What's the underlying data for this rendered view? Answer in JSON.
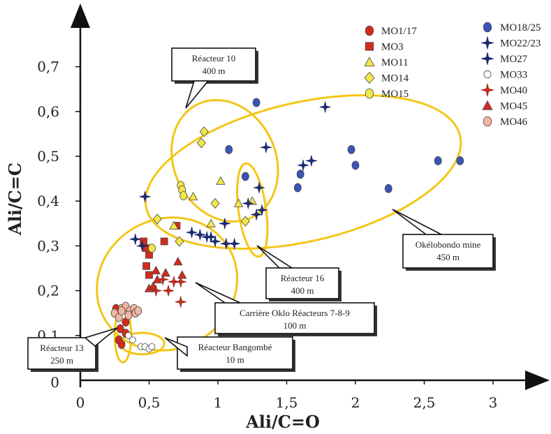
{
  "chart_data": {
    "type": "scatter",
    "xlabel": "Ali/C=O",
    "ylabel": "Ali/C=C",
    "xlim": [
      0,
      3.05
    ],
    "ylim": [
      0,
      0.75
    ],
    "x_ticks": [
      "0",
      "0,5",
      "1",
      "1,5",
      "2",
      "2,5",
      "3"
    ],
    "x_tick_values": [
      0,
      0.5,
      1,
      1.5,
      2,
      2.5,
      3
    ],
    "y_ticks": [
      "0",
      "0,1",
      "0,2",
      "0,3",
      "0,4",
      "0,5",
      "0,6",
      "0,7"
    ],
    "y_tick_values": [
      0,
      0.1,
      0.2,
      0.3,
      0.4,
      0.5,
      0.6,
      0.7
    ],
    "grid": false,
    "legend_position": "top-right",
    "series": [
      {
        "name": "MO1/17",
        "marker": "circle",
        "color": "#d42a1c",
        "points": [
          [
            0.26,
            0.16
          ],
          [
            0.33,
            0.13
          ],
          [
            0.29,
            0.115
          ],
          [
            0.33,
            0.105
          ],
          [
            0.28,
            0.09
          ],
          [
            0.3,
            0.08
          ]
        ]
      },
      {
        "name": "MO3",
        "marker": "square",
        "color": "#d42a1c",
        "points": [
          [
            0.46,
            0.31
          ],
          [
            0.48,
            0.295
          ],
          [
            0.5,
            0.28
          ],
          [
            0.48,
            0.255
          ],
          [
            0.5,
            0.235
          ],
          [
            0.61,
            0.31
          ],
          [
            0.7,
            0.345
          ]
        ]
      },
      {
        "name": "MO11",
        "marker": "triangle",
        "color": "#f2e64a",
        "points": [
          [
            0.68,
            0.345
          ],
          [
            0.82,
            0.41
          ],
          [
            1.02,
            0.445
          ],
          [
            1.15,
            0.395
          ],
          [
            1.25,
            0.4
          ],
          [
            0.95,
            0.35
          ]
        ]
      },
      {
        "name": "MO14",
        "marker": "diamond",
        "color": "#f2e64a",
        "points": [
          [
            0.9,
            0.555
          ],
          [
            0.88,
            0.53
          ],
          [
            0.56,
            0.36
          ],
          [
            0.72,
            0.31
          ],
          [
            0.98,
            0.395
          ],
          [
            1.2,
            0.355
          ]
        ]
      },
      {
        "name": "MO15",
        "marker": "circle",
        "color": "#f2e64a",
        "points": [
          [
            0.73,
            0.435
          ],
          [
            0.74,
            0.425
          ],
          [
            0.75,
            0.412
          ],
          [
            0.52,
            0.295
          ]
        ]
      },
      {
        "name": "MO18/25",
        "marker": "ellipse",
        "color": "#3a55b8",
        "points": [
          [
            1.28,
            0.62
          ],
          [
            1.08,
            0.515
          ],
          [
            1.6,
            0.46
          ],
          [
            1.97,
            0.515
          ],
          [
            2.0,
            0.48
          ],
          [
            2.6,
            0.49
          ],
          [
            2.76,
            0.49
          ],
          [
            1.58,
            0.43
          ],
          [
            2.24,
            0.428
          ],
          [
            1.2,
            0.455
          ]
        ]
      },
      {
        "name": "MO22/23",
        "marker": "star4",
        "color": "#1c2a6e",
        "points": [
          [
            1.78,
            0.61
          ],
          [
            1.35,
            0.52
          ],
          [
            1.62,
            0.48
          ],
          [
            1.68,
            0.49
          ],
          [
            1.3,
            0.43
          ],
          [
            1.28,
            0.37
          ],
          [
            1.05,
            0.35
          ],
          [
            0.95,
            0.32
          ],
          [
            1.06,
            0.305
          ],
          [
            1.12,
            0.305
          ],
          [
            0.92,
            0.32
          ],
          [
            0.47,
            0.41
          ]
        ]
      },
      {
        "name": "MO27",
        "marker": "star4",
        "color": "#1c2a6e",
        "points": [
          [
            0.4,
            0.315
          ],
          [
            0.45,
            0.3
          ],
          [
            1.22,
            0.395
          ],
          [
            1.32,
            0.38
          ],
          [
            0.87,
            0.325
          ],
          [
            0.98,
            0.31
          ],
          [
            0.81,
            0.33
          ]
        ]
      },
      {
        "name": "MO33",
        "marker": "open-circle",
        "color": "#ffffff",
        "points": [
          [
            0.35,
            0.1
          ],
          [
            0.38,
            0.09
          ],
          [
            0.44,
            0.075
          ],
          [
            0.47,
            0.075
          ],
          [
            0.5,
            0.07
          ],
          [
            0.52,
            0.075
          ]
        ]
      },
      {
        "name": "MO40",
        "marker": "star-filled",
        "color": "#d42a1c",
        "points": [
          [
            0.55,
            0.2
          ],
          [
            0.6,
            0.225
          ],
          [
            0.68,
            0.22
          ],
          [
            0.73,
            0.22
          ],
          [
            0.73,
            0.175
          ],
          [
            0.64,
            0.2
          ]
        ]
      },
      {
        "name": "MO45",
        "marker": "triangle",
        "color": "#d42a1c",
        "points": [
          [
            0.5,
            0.205
          ],
          [
            0.53,
            0.21
          ],
          [
            0.56,
            0.225
          ],
          [
            0.62,
            0.24
          ],
          [
            0.71,
            0.265
          ],
          [
            0.74,
            0.235
          ],
          [
            0.55,
            0.245
          ]
        ]
      },
      {
        "name": "MO46",
        "marker": "circle",
        "color": "#f3b5a0",
        "points": [
          [
            0.25,
            0.15
          ],
          [
            0.3,
            0.16
          ],
          [
            0.33,
            0.165
          ],
          [
            0.36,
            0.155
          ],
          [
            0.39,
            0.16
          ],
          [
            0.4,
            0.15
          ],
          [
            0.42,
            0.155
          ],
          [
            0.28,
            0.14
          ],
          [
            0.3,
            0.155
          ],
          [
            0.35,
            0.145
          ]
        ]
      }
    ],
    "annotations": [
      {
        "label": "Réacteur 10",
        "detail": "400 m"
      },
      {
        "label": "Okélobondo mine",
        "detail": "450 m"
      },
      {
        "label": "Réacteur 16",
        "detail": "400 m"
      },
      {
        "label": "Carrière Oklo Réacteurs 7-8-9",
        "detail": "100 m"
      },
      {
        "label": "Réacteur 13",
        "detail": "250 m"
      },
      {
        "label": "Réacteur Bangombé",
        "detail": "10 m"
      }
    ],
    "ellipses": [
      {
        "name": "okelobondo",
        "cx": 1.62,
        "cy": 0.465,
        "rx": 1.17,
        "ry": 0.155,
        "rot": -13
      },
      {
        "name": "reacteur-10",
        "cx": 1.05,
        "cy": 0.49,
        "rx": 0.37,
        "ry": 0.14,
        "rot": -25
      },
      {
        "name": "reacteur-16",
        "cx": 1.25,
        "cy": 0.38,
        "rx": 0.1,
        "ry": 0.105,
        "rot": -8
      },
      {
        "name": "carriere-oklo",
        "cx": 0.63,
        "cy": 0.215,
        "rx": 0.52,
        "ry": 0.145,
        "rot": -28
      },
      {
        "name": "reacteur-13",
        "cx": 0.31,
        "cy": 0.1,
        "rx": 0.06,
        "ry": 0.06,
        "rot": 0
      },
      {
        "name": "bangombe",
        "cx": 0.45,
        "cy": 0.082,
        "rx": 0.16,
        "ry": 0.024,
        "rot": 0
      }
    ],
    "ellipse_color": "#f3c617"
  }
}
